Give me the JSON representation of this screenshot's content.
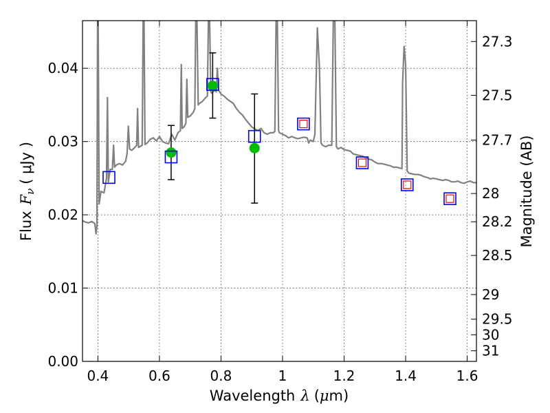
{
  "chart_data": {
    "type": "scatter",
    "xlabel": "Wavelength",
    "xlabel_math": "λ",
    "xlabel_unit_open": "(",
    "xlabel_unit_mu": "μ",
    "xlabel_unit_rest": "m)",
    "ylabel": "Flux",
    "ylabel_math_base": "F",
    "ylabel_math_sub": "ν",
    "ylabel_unit": "( μJy )",
    "y2label": "Magnitude (AB)",
    "xlim": [
      0.35,
      1.63
    ],
    "ylim": [
      0.0,
      0.0465
    ],
    "grid": true,
    "x_ticks": [
      {
        "value": 0.4,
        "label": "0.4"
      },
      {
        "value": 0.6,
        "label": "0.6"
      },
      {
        "value": 0.8,
        "label": "0.8"
      },
      {
        "value": 1.0,
        "label": "1"
      },
      {
        "value": 1.2,
        "label": "1.2"
      },
      {
        "value": 1.4,
        "label": "1.4"
      },
      {
        "value": 1.6,
        "label": "1.6"
      }
    ],
    "y_ticks": [
      {
        "value": 0.0,
        "label": "0.00"
      },
      {
        "value": 0.01,
        "label": "0.01"
      },
      {
        "value": 0.02,
        "label": "0.02"
      },
      {
        "value": 0.03,
        "label": "0.03"
      },
      {
        "value": 0.04,
        "label": "0.04"
      }
    ],
    "y2_ticks": [
      {
        "mag": 27.3,
        "label": "27.3"
      },
      {
        "mag": 27.5,
        "label": "27.5"
      },
      {
        "mag": 27.7,
        "label": "27.7"
      },
      {
        "mag": 28.0,
        "label": "28"
      },
      {
        "mag": 28.2,
        "label": "28.2"
      },
      {
        "mag": 28.5,
        "label": "28.5"
      },
      {
        "mag": 29.0,
        "label": "29"
      },
      {
        "mag": 29.5,
        "label": "29.5"
      },
      {
        "mag": 30.0,
        "label": "30"
      },
      {
        "mag": 31.0,
        "label": "31"
      }
    ],
    "series": [
      {
        "kind": "line",
        "color": "#808080",
        "points": [
          [
            0.35,
            0.0192
          ],
          [
            0.36,
            0.019
          ],
          [
            0.37,
            0.0189
          ],
          [
            0.38,
            0.0191
          ],
          [
            0.39,
            0.0188
          ],
          [
            0.394,
            0.0174
          ],
          [
            0.397,
            0.0185
          ],
          [
            0.399,
            0.0465
          ],
          [
            0.401,
            0.0465
          ],
          [
            0.404,
            0.0215
          ],
          [
            0.41,
            0.0232
          ],
          [
            0.42,
            0.023
          ],
          [
            0.428,
            0.025
          ],
          [
            0.431,
            0.036
          ],
          [
            0.434,
            0.0245
          ],
          [
            0.44,
            0.0262
          ],
          [
            0.447,
            0.0262
          ],
          [
            0.451,
            0.0295
          ],
          [
            0.454,
            0.0265
          ],
          [
            0.46,
            0.0268
          ],
          [
            0.47,
            0.027
          ],
          [
            0.48,
            0.0268
          ],
          [
            0.49,
            0.0273
          ],
          [
            0.495,
            0.0284
          ],
          [
            0.499,
            0.0321
          ],
          [
            0.503,
            0.029
          ],
          [
            0.51,
            0.0288
          ],
          [
            0.52,
            0.0292
          ],
          [
            0.526,
            0.0295
          ],
          [
            0.529,
            0.0345
          ],
          [
            0.532,
            0.0292
          ],
          [
            0.54,
            0.0294
          ],
          [
            0.544,
            0.0295
          ],
          [
            0.547,
            0.0465
          ],
          [
            0.55,
            0.0465
          ],
          [
            0.553,
            0.0296
          ],
          [
            0.56,
            0.0298
          ],
          [
            0.57,
            0.0303
          ],
          [
            0.58,
            0.0305
          ],
          [
            0.59,
            0.0301
          ],
          [
            0.6,
            0.0307
          ],
          [
            0.61,
            0.03
          ],
          [
            0.62,
            0.0298
          ],
          [
            0.63,
            0.0297
          ],
          [
            0.64,
            0.031
          ],
          [
            0.65,
            0.0302
          ],
          [
            0.66,
            0.0312
          ],
          [
            0.668,
            0.0315
          ],
          [
            0.671,
            0.0405
          ],
          [
            0.674,
            0.0318
          ],
          [
            0.68,
            0.032
          ],
          [
            0.686,
            0.0325
          ],
          [
            0.689,
            0.0385
          ],
          [
            0.692,
            0.0333
          ],
          [
            0.7,
            0.0335
          ],
          [
            0.71,
            0.034
          ],
          [
            0.715,
            0.0345
          ],
          [
            0.718,
            0.0465
          ],
          [
            0.722,
            0.0465
          ],
          [
            0.726,
            0.035
          ],
          [
            0.73,
            0.0352
          ],
          [
            0.74,
            0.0355
          ],
          [
            0.75,
            0.036
          ],
          [
            0.756,
            0.0362
          ],
          [
            0.759,
            0.0465
          ],
          [
            0.763,
            0.0465
          ],
          [
            0.767,
            0.0368
          ],
          [
            0.77,
            0.0366
          ],
          [
            0.78,
            0.037
          ],
          [
            0.785,
            0.0368
          ],
          [
            0.788,
            0.04
          ],
          [
            0.792,
            0.037
          ],
          [
            0.8,
            0.0365
          ],
          [
            0.81,
            0.0362
          ],
          [
            0.82,
            0.0358
          ],
          [
            0.83,
            0.0355
          ],
          [
            0.84,
            0.0352
          ],
          [
            0.85,
            0.0345
          ],
          [
            0.86,
            0.034
          ],
          [
            0.87,
            0.0336
          ],
          [
            0.88,
            0.033
          ],
          [
            0.89,
            0.0325
          ],
          [
            0.9,
            0.032
          ],
          [
            0.91,
            0.0317
          ],
          [
            0.92,
            0.0315
          ],
          [
            0.93,
            0.0318
          ],
          [
            0.94,
            0.0312
          ],
          [
            0.95,
            0.031
          ],
          [
            0.96,
            0.0312
          ],
          [
            0.97,
            0.0312
          ],
          [
            0.975,
            0.0314
          ],
          [
            0.979,
            0.0465
          ],
          [
            0.983,
            0.0465
          ],
          [
            0.987,
            0.0315
          ],
          [
            0.99,
            0.0312
          ],
          [
            1.0,
            0.031
          ],
          [
            1.01,
            0.0308
          ],
          [
            1.02,
            0.0305
          ],
          [
            1.03,
            0.0307
          ],
          [
            1.04,
            0.0305
          ],
          [
            1.05,
            0.0304
          ],
          [
            1.06,
            0.0305
          ],
          [
            1.07,
            0.0306
          ],
          [
            1.08,
            0.0305
          ],
          [
            1.085,
            0.0298
          ],
          [
            1.09,
            0.0302
          ],
          [
            1.1,
            0.03
          ],
          [
            1.105,
            0.031
          ],
          [
            1.113,
            0.0455
          ],
          [
            1.12,
            0.04
          ],
          [
            1.125,
            0.0298
          ],
          [
            1.13,
            0.0295
          ],
          [
            1.14,
            0.0293
          ],
          [
            1.15,
            0.0295
          ],
          [
            1.16,
            0.0295
          ],
          [
            1.165,
            0.0465
          ],
          [
            1.17,
            0.0465
          ],
          [
            1.175,
            0.0293
          ],
          [
            1.18,
            0.029
          ],
          [
            1.19,
            0.0292
          ],
          [
            1.2,
            0.0289
          ],
          [
            1.21,
            0.0288
          ],
          [
            1.22,
            0.0287
          ],
          [
            1.23,
            0.0283
          ],
          [
            1.24,
            0.0282
          ],
          [
            1.25,
            0.0281
          ],
          [
            1.26,
            0.028
          ],
          [
            1.27,
            0.0278
          ],
          [
            1.28,
            0.0276
          ],
          [
            1.29,
            0.0275
          ],
          [
            1.3,
            0.0272
          ],
          [
            1.31,
            0.027
          ],
          [
            1.32,
            0.027
          ],
          [
            1.33,
            0.0269
          ],
          [
            1.34,
            0.0268
          ],
          [
            1.35,
            0.0267
          ],
          [
            1.36,
            0.0265
          ],
          [
            1.37,
            0.0265
          ],
          [
            1.38,
            0.0264
          ],
          [
            1.388,
            0.0263
          ],
          [
            1.39,
            0.038
          ],
          [
            1.395,
            0.043
          ],
          [
            1.4,
            0.0405
          ],
          [
            1.405,
            0.026
          ],
          [
            1.41,
            0.0257
          ],
          [
            1.42,
            0.0256
          ],
          [
            1.43,
            0.0255
          ],
          [
            1.44,
            0.0255
          ],
          [
            1.45,
            0.0254
          ],
          [
            1.46,
            0.0252
          ],
          [
            1.47,
            0.0251
          ],
          [
            1.48,
            0.0249
          ],
          [
            1.49,
            0.025
          ],
          [
            1.5,
            0.0249
          ],
          [
            1.51,
            0.0248
          ],
          [
            1.52,
            0.0247
          ],
          [
            1.53,
            0.0248
          ],
          [
            1.54,
            0.0247
          ],
          [
            1.55,
            0.0245
          ],
          [
            1.56,
            0.0245
          ],
          [
            1.57,
            0.0246
          ],
          [
            1.58,
            0.0244
          ],
          [
            1.59,
            0.0243
          ],
          [
            1.6,
            0.0245
          ],
          [
            1.61,
            0.0246
          ],
          [
            1.62,
            0.0244
          ],
          [
            1.63,
            0.0244
          ]
        ]
      },
      {
        "kind": "errorbar",
        "color": "#000000",
        "marker_color": "#00bb00",
        "points": [
          {
            "x": 0.638,
            "y": 0.0285,
            "ylo": 0.0248,
            "yhi": 0.0322
          },
          {
            "x": 0.773,
            "y": 0.0376,
            "ylo": 0.0332,
            "yhi": 0.0421
          },
          {
            "x": 0.909,
            "y": 0.0291,
            "ylo": 0.0216,
            "yhi": 0.0365
          }
        ]
      },
      {
        "kind": "open-square",
        "color": "#0000ff",
        "points": [
          [
            0.436,
            0.0251
          ],
          [
            0.638,
            0.0279
          ],
          [
            0.773,
            0.0378
          ],
          [
            0.909,
            0.0307
          ],
          [
            1.068,
            0.0324
          ],
          [
            1.259,
            0.0271
          ],
          [
            1.405,
            0.0241
          ],
          [
            1.544,
            0.0222
          ]
        ]
      },
      {
        "kind": "small-square",
        "color": "#ff0000",
        "points": [
          [
            1.068,
            0.0324
          ],
          [
            1.259,
            0.0271
          ],
          [
            1.405,
            0.0241
          ],
          [
            1.544,
            0.0222
          ]
        ]
      }
    ]
  }
}
